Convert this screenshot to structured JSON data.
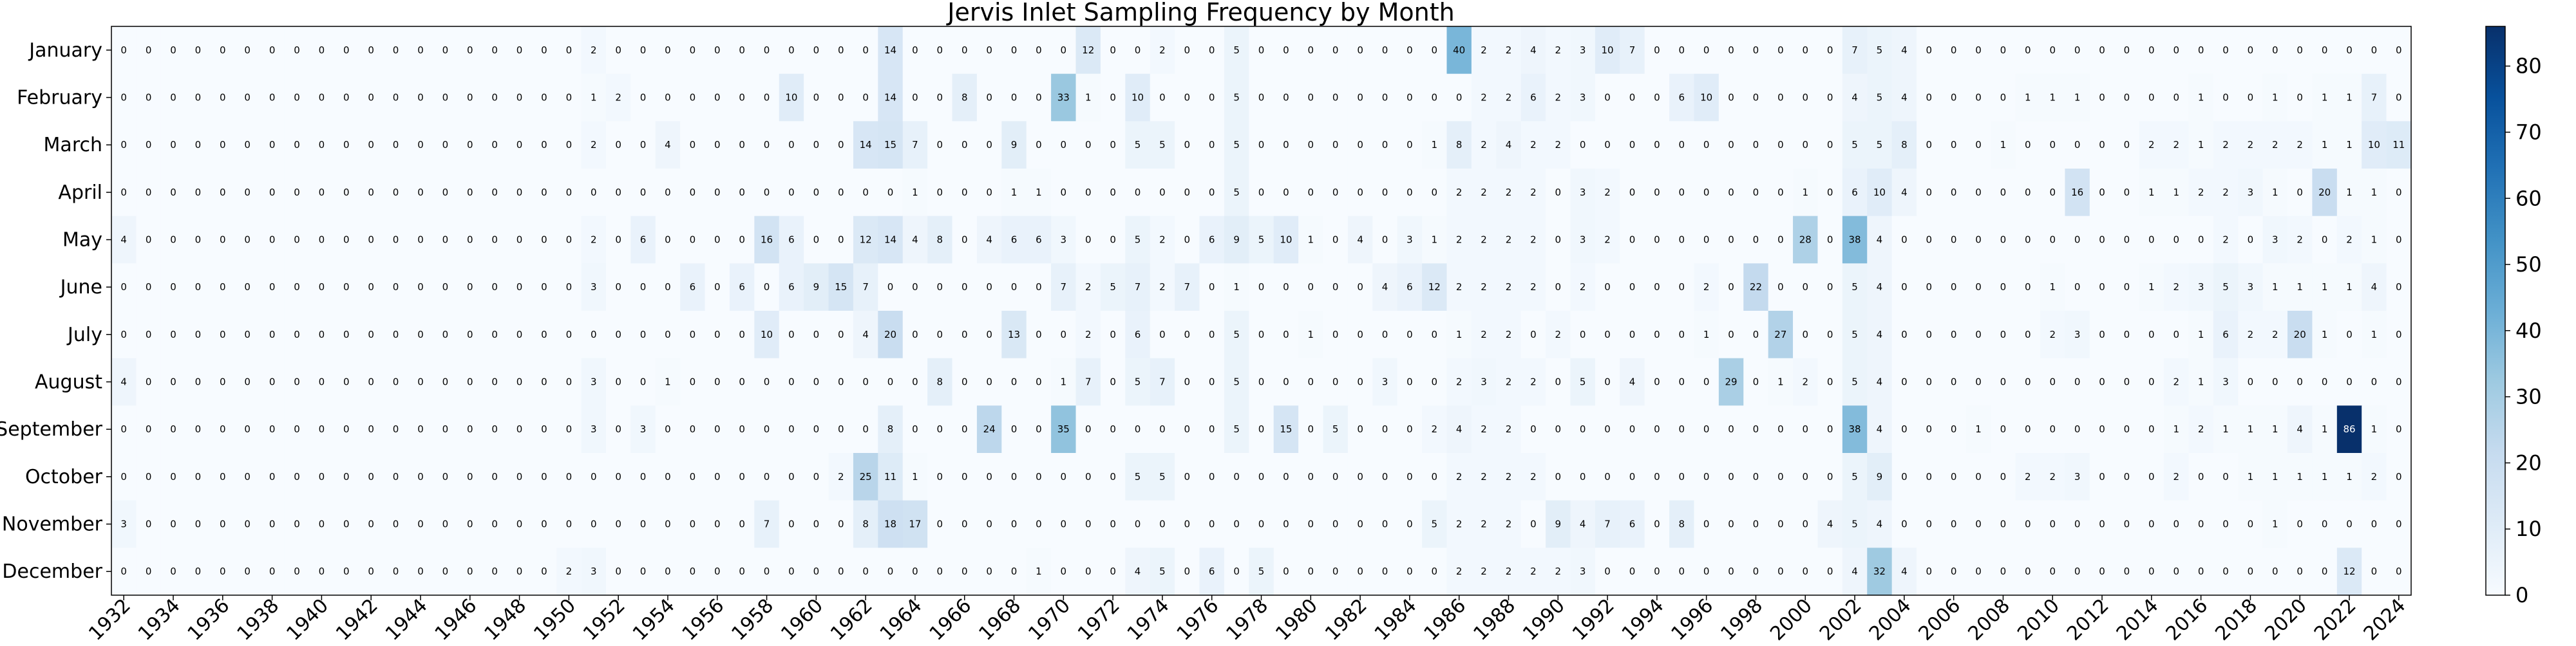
{
  "chart_data": {
    "type": "heatmap",
    "title": "Jervis Inlet Sampling Frequency by Month",
    "xlabel": "",
    "ylabel": "",
    "colormap": "Blues",
    "colorbar": {
      "min": 0,
      "max": 86,
      "ticks": [
        0,
        10,
        20,
        30,
        40,
        50,
        60,
        70,
        80
      ]
    },
    "y_categories": [
      "January",
      "February",
      "March",
      "April",
      "May",
      "June",
      "July",
      "August",
      "September",
      "October",
      "November",
      "December"
    ],
    "x_years": [
      1932,
      1933,
      1934,
      1935,
      1936,
      1937,
      1938,
      1939,
      1940,
      1941,
      1942,
      1943,
      1944,
      1945,
      1946,
      1947,
      1948,
      1949,
      1950,
      1951,
      1952,
      1953,
      1954,
      1955,
      1956,
      1957,
      1958,
      1959,
      1960,
      1961,
      1962,
      1963,
      1964,
      1965,
      1966,
      1967,
      1968,
      1969,
      1970,
      1971,
      1972,
      1973,
      1974,
      1975,
      1976,
      1977,
      1978,
      1979,
      1980,
      1981,
      1982,
      1983,
      1984,
      1985,
      1986,
      1987,
      1988,
      1989,
      1990,
      1991,
      1992,
      1993,
      1994,
      1995,
      1996,
      1997,
      1998,
      1999,
      2000,
      2001,
      2002,
      2003,
      2004,
      2005,
      2006,
      2007,
      2008,
      2009,
      2010,
      2011,
      2012,
      2013,
      2014,
      2015,
      2016,
      2017,
      2018,
      2019,
      2020,
      2021,
      2022,
      2023,
      2024
    ],
    "x_tick_labels": [
      1932,
      1934,
      1936,
      1938,
      1940,
      1942,
      1944,
      1946,
      1948,
      1950,
      1952,
      1954,
      1956,
      1958,
      1960,
      1962,
      1964,
      1966,
      1968,
      1970,
      1972,
      1974,
      1976,
      1978,
      1980,
      1982,
      1984,
      1986,
      1988,
      1990,
      1992,
      1994,
      1996,
      1998,
      2000,
      2002,
      2004,
      2006,
      2008,
      2010,
      2012,
      2014,
      2016,
      2018,
      2020,
      2022,
      2024
    ],
    "values": [
      [
        0,
        0,
        0,
        0,
        0,
        0,
        0,
        0,
        0,
        0,
        0,
        0,
        0,
        0,
        0,
        0,
        0,
        0,
        0,
        2,
        0,
        0,
        0,
        0,
        0,
        0,
        0,
        0,
        0,
        0,
        0,
        14,
        0,
        0,
        0,
        0,
        0,
        0,
        0,
        12,
        0,
        0,
        2,
        0,
        0,
        5,
        0,
        0,
        0,
        0,
        0,
        0,
        0,
        0,
        40,
        2,
        2,
        4,
        2,
        3,
        10,
        7,
        0,
        0,
        0,
        0,
        0,
        0,
        0,
        0,
        7,
        5,
        4,
        0,
        0,
        0,
        0,
        0,
        0,
        0,
        0,
        0,
        0,
        0,
        0,
        0,
        0,
        0,
        0,
        0,
        0,
        0,
        0
      ],
      [
        0,
        0,
        0,
        0,
        0,
        0,
        0,
        0,
        0,
        0,
        0,
        0,
        0,
        0,
        0,
        0,
        0,
        0,
        0,
        1,
        2,
        0,
        0,
        0,
        0,
        0,
        0,
        10,
        0,
        0,
        0,
        14,
        0,
        0,
        8,
        0,
        0,
        0,
        33,
        1,
        0,
        10,
        0,
        0,
        0,
        5,
        0,
        0,
        0,
        0,
        0,
        0,
        0,
        0,
        0,
        2,
        2,
        6,
        2,
        3,
        0,
        0,
        0,
        6,
        10,
        0,
        0,
        0,
        0,
        0,
        4,
        5,
        4,
        0,
        0,
        0,
        0,
        1,
        1,
        1,
        0,
        0,
        0,
        0,
        1,
        0,
        0,
        1,
        0,
        1,
        1,
        7,
        0
      ],
      [
        0,
        0,
        0,
        0,
        0,
        0,
        0,
        0,
        0,
        0,
        0,
        0,
        0,
        0,
        0,
        0,
        0,
        0,
        0,
        2,
        0,
        0,
        4,
        0,
        0,
        0,
        0,
        0,
        0,
        0,
        14,
        15,
        7,
        0,
        0,
        0,
        9,
        0,
        0,
        0,
        0,
        5,
        5,
        0,
        0,
        5,
        0,
        0,
        0,
        0,
        0,
        0,
        0,
        1,
        8,
        2,
        4,
        2,
        2,
        0,
        0,
        0,
        0,
        0,
        0,
        0,
        0,
        0,
        0,
        0,
        5,
        5,
        8,
        0,
        0,
        0,
        1,
        0,
        0,
        0,
        0,
        0,
        2,
        2,
        1,
        2,
        2,
        2,
        2,
        1,
        1,
        10,
        11
      ],
      [
        0,
        0,
        0,
        0,
        0,
        0,
        0,
        0,
        0,
        0,
        0,
        0,
        0,
        0,
        0,
        0,
        0,
        0,
        0,
        0,
        0,
        0,
        0,
        0,
        0,
        0,
        0,
        0,
        0,
        0,
        0,
        0,
        1,
        0,
        0,
        0,
        1,
        1,
        0,
        0,
        0,
        0,
        0,
        0,
        0,
        5,
        0,
        0,
        0,
        0,
        0,
        0,
        0,
        0,
        2,
        2,
        2,
        2,
        0,
        3,
        2,
        0,
        0,
        0,
        0,
        0,
        0,
        0,
        1,
        0,
        6,
        10,
        4,
        0,
        0,
        0,
        0,
        0,
        0,
        16,
        0,
        0,
        1,
        1,
        2,
        2,
        3,
        1,
        0,
        20,
        1,
        1,
        0
      ],
      [
        4,
        0,
        0,
        0,
        0,
        0,
        0,
        0,
        0,
        0,
        0,
        0,
        0,
        0,
        0,
        0,
        0,
        0,
        0,
        2,
        0,
        6,
        0,
        0,
        0,
        0,
        16,
        6,
        0,
        0,
        12,
        14,
        4,
        8,
        0,
        4,
        6,
        6,
        3,
        0,
        0,
        5,
        2,
        0,
        6,
        9,
        5,
        10,
        1,
        0,
        4,
        0,
        3,
        1,
        2,
        2,
        2,
        2,
        0,
        3,
        2,
        0,
        0,
        0,
        0,
        0,
        0,
        0,
        28,
        0,
        38,
        4,
        0,
        0,
        0,
        0,
        0,
        0,
        0,
        0,
        0,
        0,
        0,
        0,
        0,
        2,
        0,
        3,
        2,
        0,
        2,
        1,
        0
      ],
      [
        0,
        0,
        0,
        0,
        0,
        0,
        0,
        0,
        0,
        0,
        0,
        0,
        0,
        0,
        0,
        0,
        0,
        0,
        0,
        3,
        0,
        0,
        0,
        6,
        0,
        6,
        0,
        6,
        9,
        15,
        7,
        0,
        0,
        0,
        0,
        0,
        0,
        0,
        7,
        2,
        5,
        7,
        2,
        7,
        0,
        1,
        0,
        0,
        0,
        0,
        0,
        4,
        6,
        12,
        2,
        2,
        2,
        2,
        0,
        2,
        0,
        0,
        0,
        0,
        2,
        0,
        22,
        0,
        0,
        0,
        5,
        4,
        0,
        0,
        0,
        0,
        0,
        0,
        1,
        0,
        0,
        0,
        1,
        2,
        3,
        5,
        3,
        1,
        1,
        1,
        1,
        4,
        0
      ],
      [
        0,
        0,
        0,
        0,
        0,
        0,
        0,
        0,
        0,
        0,
        0,
        0,
        0,
        0,
        0,
        0,
        0,
        0,
        0,
        0,
        0,
        0,
        0,
        0,
        0,
        0,
        10,
        0,
        0,
        0,
        4,
        20,
        0,
        0,
        0,
        0,
        13,
        0,
        0,
        2,
        0,
        6,
        0,
        0,
        0,
        5,
        0,
        0,
        1,
        0,
        0,
        0,
        0,
        0,
        1,
        2,
        2,
        0,
        2,
        0,
        0,
        0,
        0,
        0,
        1,
        0,
        0,
        27,
        0,
        0,
        5,
        4,
        0,
        0,
        0,
        0,
        0,
        0,
        2,
        3,
        0,
        0,
        0,
        0,
        1,
        6,
        2,
        2,
        20,
        1,
        0,
        1,
        0
      ],
      [
        4,
        0,
        0,
        0,
        0,
        0,
        0,
        0,
        0,
        0,
        0,
        0,
        0,
        0,
        0,
        0,
        0,
        0,
        0,
        3,
        0,
        0,
        1,
        0,
        0,
        0,
        0,
        0,
        0,
        0,
        0,
        0,
        0,
        8,
        0,
        0,
        0,
        0,
        1,
        7,
        0,
        5,
        7,
        0,
        0,
        5,
        0,
        0,
        0,
        0,
        0,
        3,
        0,
        0,
        2,
        3,
        2,
        2,
        0,
        5,
        0,
        4,
        0,
        0,
        0,
        29,
        0,
        1,
        2,
        0,
        5,
        4,
        0,
        0,
        0,
        0,
        0,
        0,
        0,
        0,
        0,
        0,
        0,
        2,
        1,
        3,
        0,
        0,
        0,
        0,
        0,
        0,
        0
      ],
      [
        0,
        0,
        0,
        0,
        0,
        0,
        0,
        0,
        0,
        0,
        0,
        0,
        0,
        0,
        0,
        0,
        0,
        0,
        0,
        3,
        0,
        3,
        0,
        0,
        0,
        0,
        0,
        0,
        0,
        0,
        0,
        8,
        0,
        0,
        0,
        24,
        0,
        0,
        35,
        0,
        0,
        0,
        0,
        0,
        0,
        5,
        0,
        15,
        0,
        5,
        0,
        0,
        0,
        2,
        4,
        2,
        2,
        0,
        0,
        0,
        0,
        0,
        0,
        0,
        0,
        0,
        0,
        0,
        0,
        0,
        38,
        4,
        0,
        0,
        0,
        1,
        0,
        0,
        0,
        0,
        0,
        0,
        0,
        1,
        2,
        1,
        1,
        1,
        4,
        1,
        86,
        1,
        0
      ],
      [
        0,
        0,
        0,
        0,
        0,
        0,
        0,
        0,
        0,
        0,
        0,
        0,
        0,
        0,
        0,
        0,
        0,
        0,
        0,
        0,
        0,
        0,
        0,
        0,
        0,
        0,
        0,
        0,
        0,
        2,
        25,
        11,
        1,
        0,
        0,
        0,
        0,
        0,
        0,
        0,
        0,
        5,
        5,
        0,
        0,
        0,
        0,
        0,
        0,
        0,
        0,
        0,
        0,
        0,
        2,
        2,
        2,
        2,
        0,
        0,
        0,
        0,
        0,
        0,
        0,
        0,
        0,
        0,
        0,
        0,
        5,
        9,
        0,
        0,
        0,
        0,
        0,
        2,
        2,
        3,
        0,
        0,
        0,
        2,
        0,
        0,
        1,
        1,
        1,
        1,
        1,
        2,
        0
      ],
      [
        3,
        0,
        0,
        0,
        0,
        0,
        0,
        0,
        0,
        0,
        0,
        0,
        0,
        0,
        0,
        0,
        0,
        0,
        0,
        0,
        0,
        0,
        0,
        0,
        0,
        0,
        7,
        0,
        0,
        0,
        8,
        18,
        17,
        0,
        0,
        0,
        0,
        0,
        0,
        0,
        0,
        0,
        0,
        0,
        0,
        0,
        0,
        0,
        0,
        0,
        0,
        0,
        0,
        5,
        2,
        2,
        2,
        0,
        9,
        4,
        7,
        6,
        0,
        8,
        0,
        0,
        0,
        0,
        0,
        4,
        5,
        4,
        0,
        0,
        0,
        0,
        0,
        0,
        0,
        0,
        0,
        0,
        0,
        0,
        0,
        0,
        0,
        1,
        0,
        0,
        0,
        0,
        0
      ],
      [
        0,
        0,
        0,
        0,
        0,
        0,
        0,
        0,
        0,
        0,
        0,
        0,
        0,
        0,
        0,
        0,
        0,
        0,
        2,
        3,
        0,
        0,
        0,
        0,
        0,
        0,
        0,
        0,
        0,
        0,
        0,
        0,
        0,
        0,
        0,
        0,
        0,
        1,
        0,
        0,
        0,
        4,
        5,
        0,
        6,
        0,
        5,
        0,
        0,
        0,
        0,
        0,
        0,
        0,
        2,
        2,
        2,
        2,
        2,
        3,
        0,
        0,
        0,
        0,
        0,
        0,
        0,
        0,
        0,
        0,
        4,
        32,
        4,
        0,
        0,
        0,
        0,
        0,
        0,
        0,
        0,
        0,
        0,
        0,
        0,
        0,
        0,
        0,
        0,
        0,
        12,
        0,
        0
      ]
    ]
  }
}
